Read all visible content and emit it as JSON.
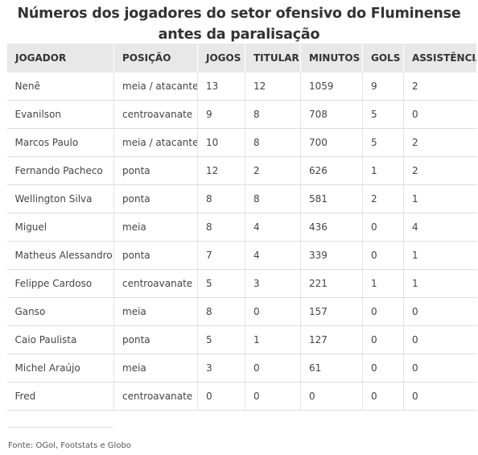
{
  "title": "Números dos jogadores do setor ofensivo do Fluminense antes da paralisação",
  "table": {
    "headers": [
      "JOGADOR",
      "POSIÇÃO",
      "JOGOS",
      "TITULAR",
      "MINUTOS",
      "GOLS",
      "ASSISTÊNCIAS"
    ],
    "rows": [
      [
        "Nenê",
        "meia / atacante",
        "13",
        "12",
        "1059",
        "9",
        "2"
      ],
      [
        "Evanilson",
        "centroavanate",
        "9",
        "8",
        "708",
        "5",
        "0"
      ],
      [
        "Marcos Paulo",
        "meia / atacante",
        "10",
        "8",
        "700",
        "5",
        "2"
      ],
      [
        "Fernando Pacheco",
        "ponta",
        "12",
        "2",
        "626",
        "1",
        "2"
      ],
      [
        "Wellington Silva",
        "ponta",
        "8",
        "8",
        "581",
        "2",
        "1"
      ],
      [
        "Miguel",
        "meia",
        "8",
        "4",
        "436",
        "0",
        "4"
      ],
      [
        "Matheus Alessandro",
        "ponta",
        "7",
        "4",
        "339",
        "0",
        "1"
      ],
      [
        "Felippe Cardoso",
        "centroavanate",
        "5",
        "3",
        "221",
        "1",
        "1"
      ],
      [
        "Ganso",
        "meia",
        "8",
        "0",
        "157",
        "0",
        "0"
      ],
      [
        "Caio Paulista",
        "ponta",
        "5",
        "1",
        "127",
        "0",
        "0"
      ],
      [
        "Michel Araújo",
        "meia",
        "3",
        "0",
        "61",
        "0",
        "0"
      ],
      [
        "Fred",
        "centroavanate",
        "0",
        "0",
        "0",
        "0",
        "0"
      ]
    ]
  },
  "source": "Fonte: OGol, Footstats e Globo"
}
